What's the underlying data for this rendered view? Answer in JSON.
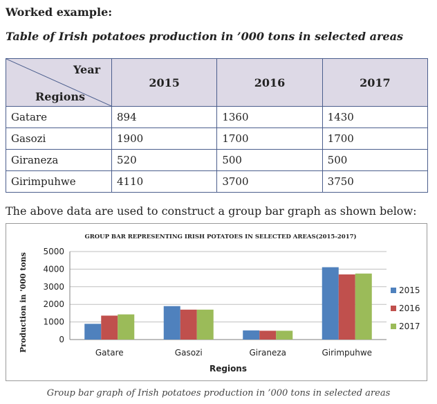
{
  "heading": "Worked example:",
  "table_title": "Table of Irish potatoes production in ’000 tons in selected areas",
  "table": {
    "corner_top": "Year",
    "corner_bottom": "Regions",
    "years": [
      "2015",
      "2016",
      "2017"
    ],
    "rows": [
      {
        "region": "Gatare",
        "values": [
          "894",
          "1360",
          "1430"
        ]
      },
      {
        "region": "Gasozi",
        "values": [
          "1900",
          "1700",
          "1700"
        ]
      },
      {
        "region": "Giraneza",
        "values": [
          "520",
          "500",
          "500"
        ]
      },
      {
        "region": "Girimpuhwe",
        "values": [
          "4110",
          "3700",
          "3750"
        ]
      }
    ]
  },
  "intro_text": "The above data are used to construct a group bar graph as shown below:",
  "chart_data": {
    "type": "bar",
    "title": "GROUP  BAR REPRESENTING  IRISH POTATOES    IN SELECTED  AREAS(2015-2017)",
    "xlabel": "Regions",
    "ylabel": "Production in '000 tons",
    "categories": [
      "Gatare",
      "Gasozi",
      "Giraneza",
      "Girimpuhwe"
    ],
    "yticks": [
      "0",
      "1000",
      "2000",
      "3000",
      "4000",
      "5000"
    ],
    "ylim": [
      0,
      5000
    ],
    "grid": true,
    "legend": "right",
    "series": [
      {
        "name": "2015",
        "color": "#4f81bd",
        "values": [
          894,
          1900,
          520,
          4110
        ]
      },
      {
        "name": "2016",
        "color": "#c0504d",
        "values": [
          1360,
          1700,
          500,
          3700
        ]
      },
      {
        "name": "2017",
        "color": "#9bbb59",
        "values": [
          1430,
          1700,
          500,
          3750
        ]
      }
    ]
  },
  "figure_caption": "Group bar graph of Irish potatoes production in ’000 tons in selected areas"
}
